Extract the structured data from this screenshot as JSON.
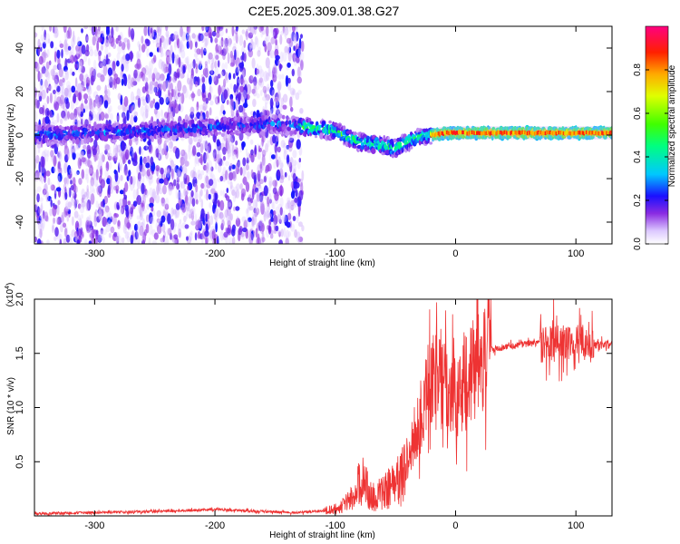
{
  "title": "C2E5.2025.309.01.38.G27",
  "chart_data": [
    {
      "type": "heatmap",
      "name": "spectrogram",
      "xlabel": "Height of straight line (km)",
      "ylabel": "Frequency (Hz)",
      "xlim": [
        -350,
        130
      ],
      "ylim": [
        -50,
        50
      ],
      "xticks": [
        -300,
        -200,
        -100,
        0,
        100
      ],
      "xtick_labels": [
        "-300",
        "-200",
        "-100",
        "0",
        "100"
      ],
      "yticks": [
        -40,
        -20,
        0,
        20,
        40
      ],
      "ytick_labels": [
        "-40",
        "-20",
        "0",
        "20",
        "40"
      ],
      "colorbar": {
        "label": "Normalized spectral amplitude",
        "range": [
          0,
          1
        ],
        "ticks": [
          0.0,
          0.2,
          0.4,
          0.6,
          0.8
        ],
        "tick_labels": [
          "0.0",
          "0.2",
          "0.4",
          "0.6",
          "0.8"
        ]
      },
      "noise_region_x": [
        -350,
        -127
      ],
      "centerline": [
        [
          -350,
          0
        ],
        [
          -300,
          1
        ],
        [
          -250,
          2
        ],
        [
          -200,
          4
        ],
        [
          -150,
          5
        ],
        [
          -130,
          4
        ],
        [
          -115,
          3
        ],
        [
          -100,
          2
        ],
        [
          -90,
          -1
        ],
        [
          -80,
          -3
        ],
        [
          -70,
          -4
        ],
        [
          -60,
          -5
        ],
        [
          -50,
          -6
        ],
        [
          -40,
          -3
        ],
        [
          -30,
          -1
        ],
        [
          -20,
          0
        ],
        [
          -10,
          1
        ],
        [
          0,
          1
        ],
        [
          20,
          1
        ],
        [
          50,
          1
        ],
        [
          80,
          1
        ],
        [
          100,
          1
        ],
        [
          130,
          1
        ]
      ]
    },
    {
      "type": "line",
      "name": "snr",
      "xlabel": "Height of straight line (km)",
      "ylabel": "SNR (10 * v/v)",
      "multiplier_label": "(x10",
      "multiplier_exp": "4",
      "multiplier_close": ")",
      "xlim": [
        -350,
        130
      ],
      "ylim": [
        0,
        2.0
      ],
      "xticks": [
        -300,
        -200,
        -100,
        0,
        100
      ],
      "xtick_labels": [
        "-300",
        "-200",
        "-100",
        "0",
        "100"
      ],
      "yticks": [
        0.5,
        1.0,
        1.5,
        2.0
      ],
      "ytick_labels": [
        "0.5",
        "1.0",
        "1.5",
        "2.0"
      ],
      "color": "#ee3333",
      "envelope": [
        [
          -350,
          0.02
        ],
        [
          -300,
          0.03
        ],
        [
          -250,
          0.04
        ],
        [
          -200,
          0.06
        ],
        [
          -160,
          0.04
        ],
        [
          -130,
          0.03
        ],
        [
          -110,
          0.05
        ],
        [
          -95,
          0.1
        ],
        [
          -85,
          0.2
        ],
        [
          -78,
          0.4
        ],
        [
          -70,
          0.2
        ],
        [
          -60,
          0.25
        ],
        [
          -50,
          0.35
        ],
        [
          -40,
          0.5
        ],
        [
          -30,
          0.9
        ],
        [
          -25,
          1.1
        ],
        [
          -20,
          1.3
        ],
        [
          -15,
          1.25
        ],
        [
          -10,
          1.2
        ],
        [
          -5,
          1.15
        ],
        [
          0,
          1.1
        ],
        [
          10,
          1.25
        ],
        [
          20,
          1.4
        ],
        [
          30,
          1.52
        ],
        [
          40,
          1.56
        ],
        [
          60,
          1.59
        ],
        [
          80,
          1.6
        ],
        [
          100,
          1.59
        ],
        [
          130,
          1.58
        ]
      ]
    }
  ]
}
